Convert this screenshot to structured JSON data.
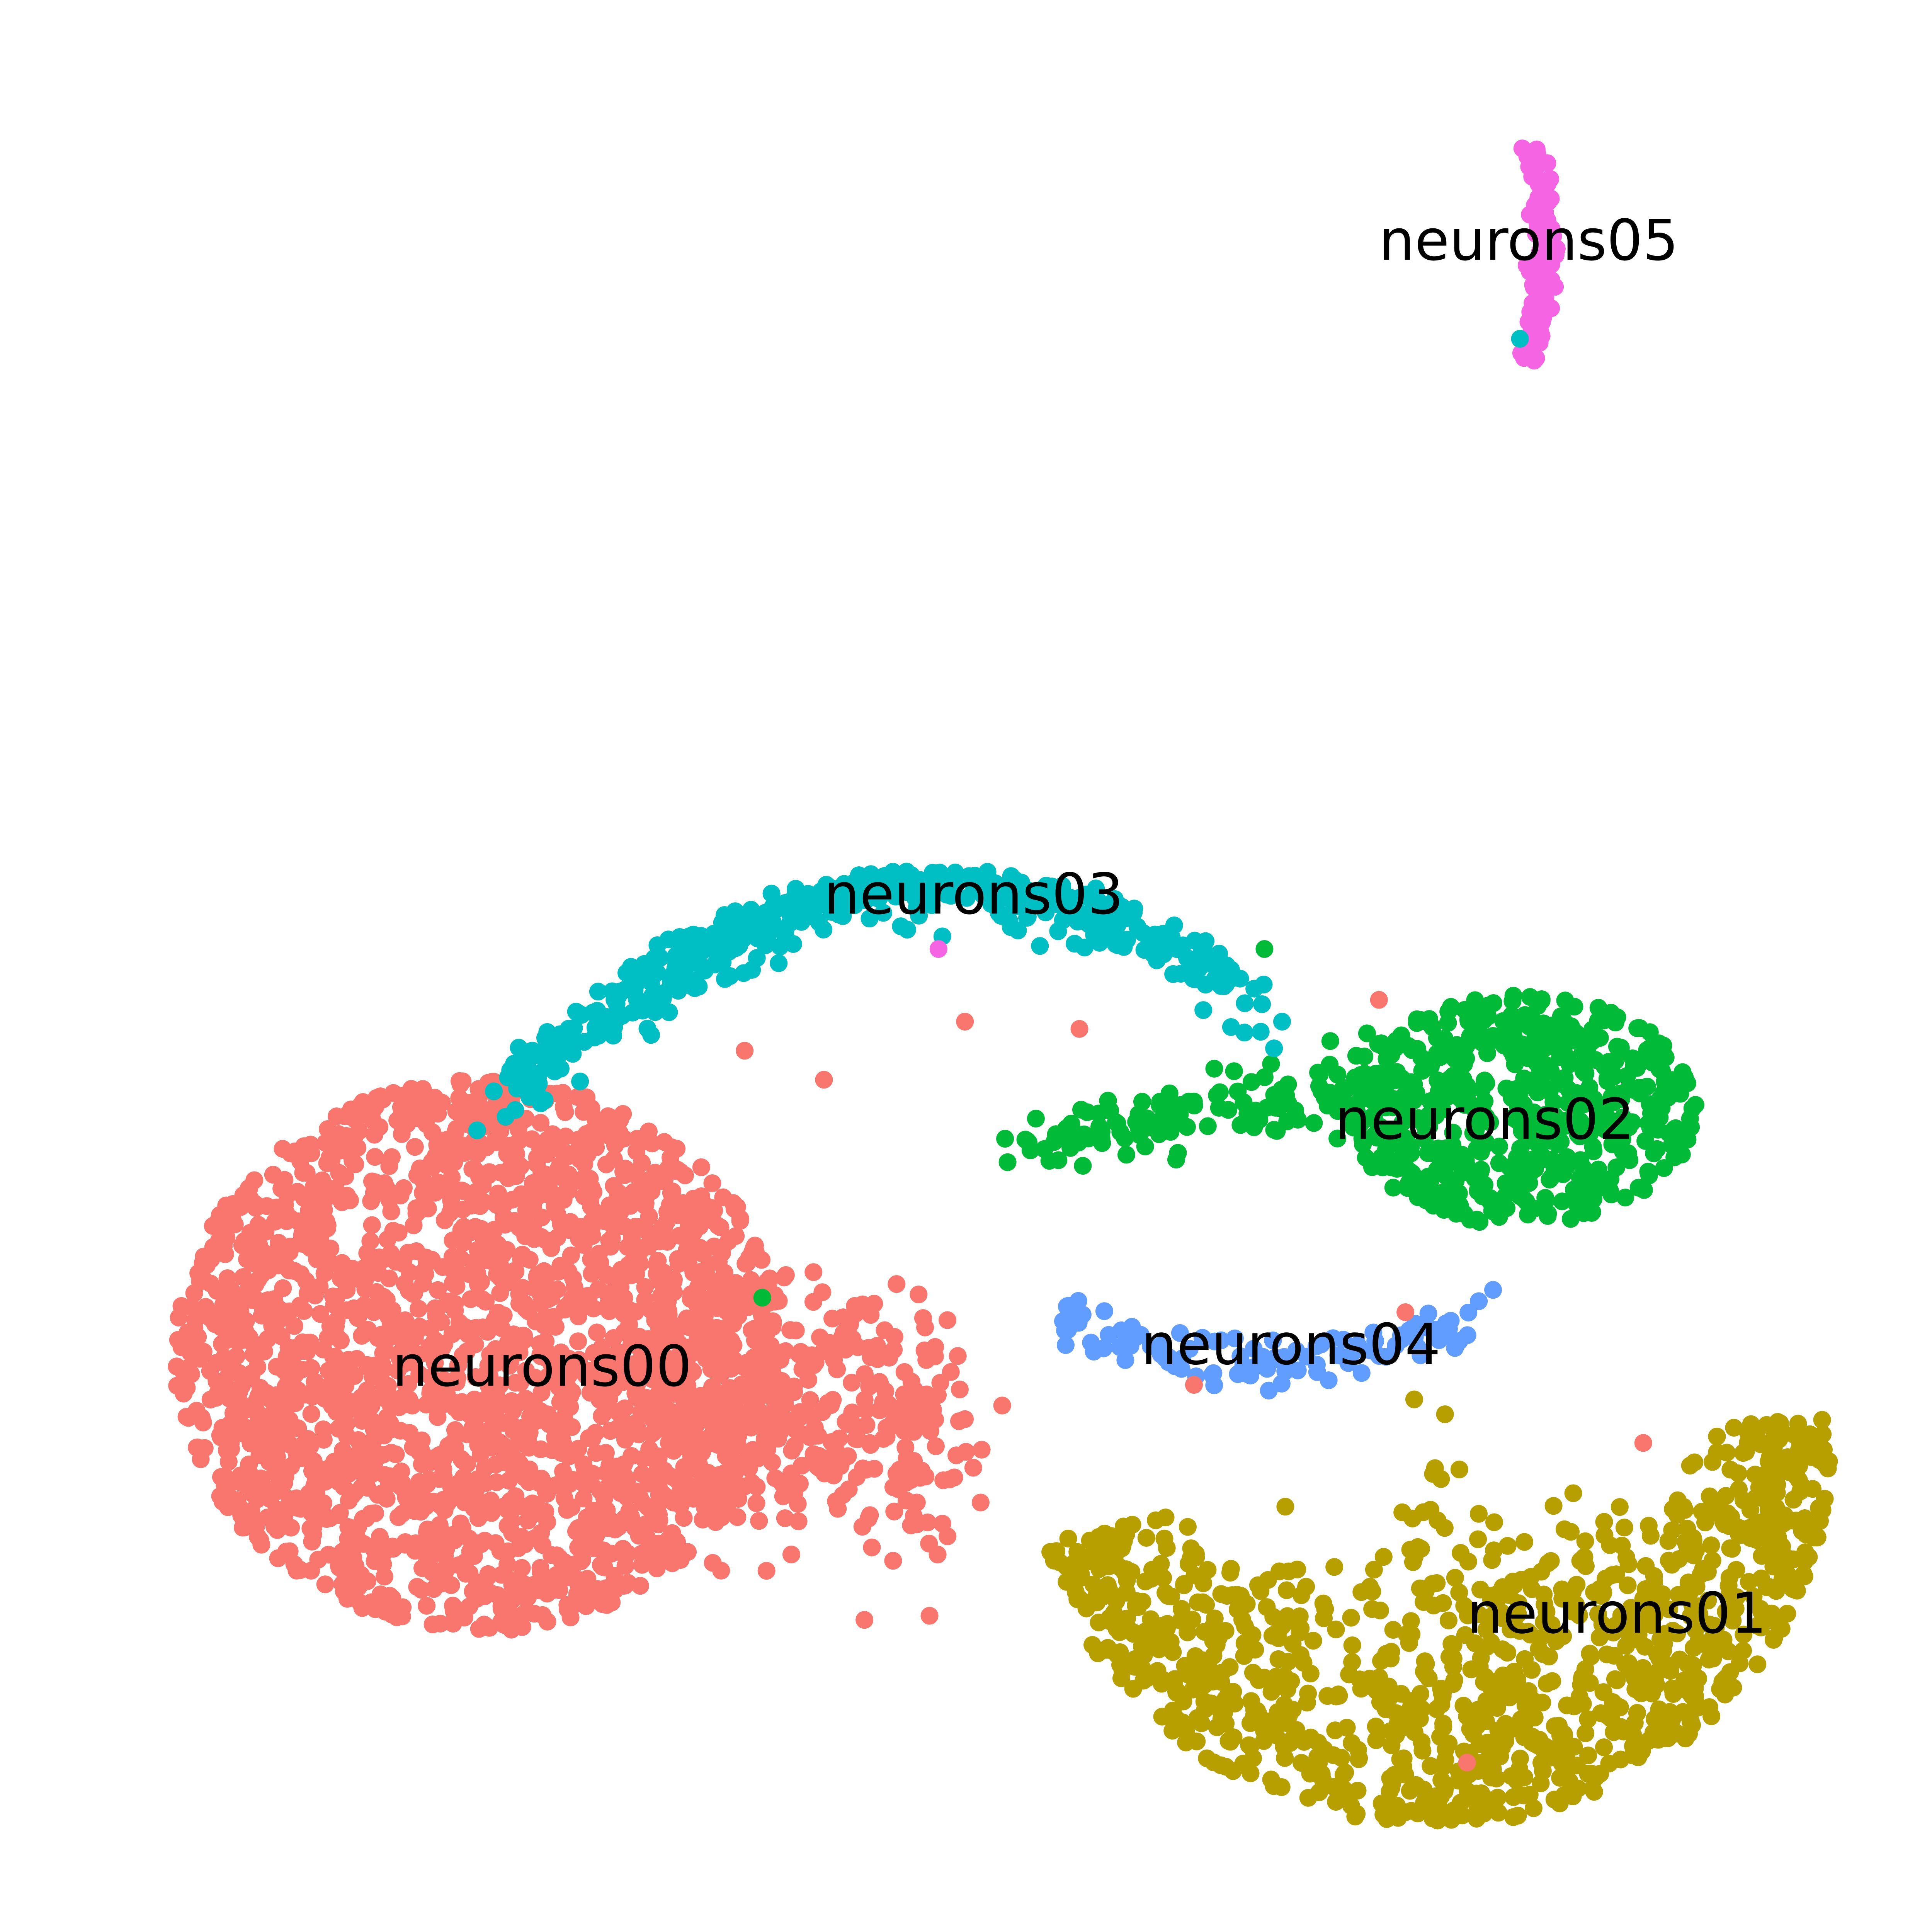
{
  "chart_data": {
    "type": "scatter",
    "title": "",
    "xlabel": "",
    "ylabel": "",
    "axes_visible": false,
    "grid": false,
    "legend": "none",
    "clusters": [
      {
        "name": "neurons00",
        "color": "#F8766D",
        "label_position": {
          "x": -2.9,
          "y": -3.8
        },
        "shape": "dense blob",
        "approx_count": 2500,
        "extent": {
          "x": [
            -7.6,
            1.6
          ],
          "y": [
            -7.4,
            0.2
          ]
        }
      },
      {
        "name": "neurons01",
        "color": "#B79F00",
        "label_position": {
          "x": 9.3,
          "y": -7.2
        },
        "shape": "crescent",
        "approx_count": 1100,
        "extent": {
          "x": [
            4.2,
            11.5
          ],
          "y": [
            -10.0,
            -4.4
          ]
        }
      },
      {
        "name": "neurons02",
        "color": "#00BA38",
        "label_position": {
          "x": 7.8,
          "y": -0.4
        },
        "shape": "blob with left tail",
        "approx_count": 700,
        "extent": {
          "x": [
            2.2,
            10.4
          ],
          "y": [
            -2.6,
            1.8
          ]
        }
      },
      {
        "name": "neurons03",
        "color": "#00BFC4",
        "label_position": {
          "x": 2.0,
          "y": 2.7
        },
        "shape": "arc",
        "approx_count": 500,
        "extent": {
          "x": [
            -3.5,
            5.4
          ],
          "y": [
            0.7,
            3.4
          ]
        }
      },
      {
        "name": "neurons04",
        "color": "#619CFF",
        "label_position": {
          "x": 5.6,
          "y": -3.5
        },
        "shape": "thin band",
        "approx_count": 110,
        "extent": {
          "x": [
            2.6,
            8.0
          ],
          "y": [
            -4.3,
            -2.5
          ]
        }
      },
      {
        "name": "neurons05",
        "color": "#F564E3",
        "label_position": {
          "x": 8.3,
          "y": 11.7
        },
        "shape": "vertical streak",
        "approx_count": 120,
        "extent": {
          "x": [
            8.0,
            8.6
          ],
          "y": [
            10.0,
            13.2
          ]
        }
      }
    ]
  }
}
